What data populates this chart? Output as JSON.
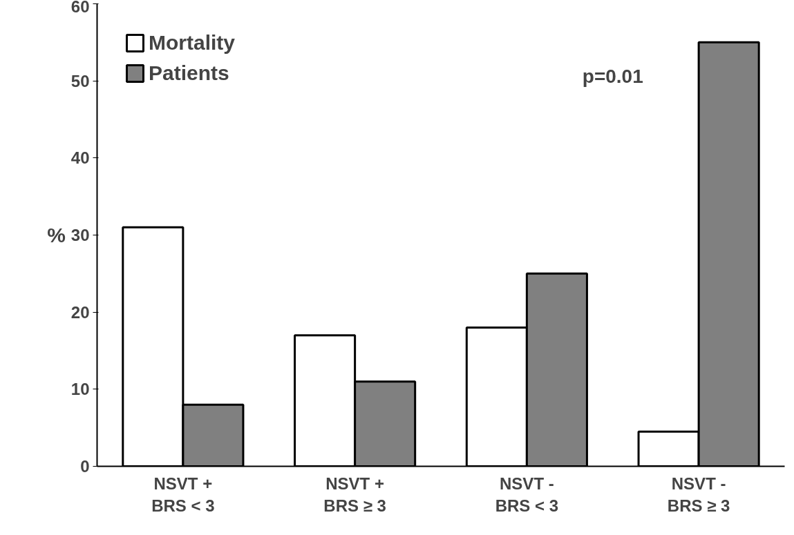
{
  "chart_data": {
    "type": "bar",
    "categories": [
      "NSVT +\nBRS < 3",
      "NSVT +\nBRS ≥ 3",
      "NSVT -\nBRS < 3",
      "NSVT -\nBRS ≥ 3"
    ],
    "series": [
      {
        "name": "Mortality",
        "color": "#ffffff",
        "values": [
          31,
          17,
          18,
          4.5
        ]
      },
      {
        "name": "Patients",
        "color": "#808080",
        "values": [
          8,
          11,
          25,
          55
        ]
      }
    ],
    "ylabel": "%",
    "ylim": [
      0,
      60
    ],
    "yticks": [
      0,
      10,
      20,
      30,
      40,
      50,
      60
    ],
    "grid": false,
    "legend": "top left",
    "annotations": [
      "p=0.01"
    ]
  }
}
